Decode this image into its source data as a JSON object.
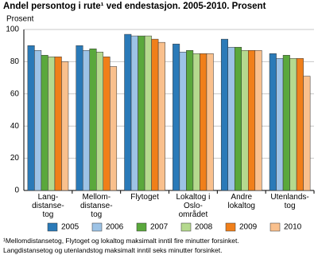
{
  "chart_data": {
    "type": "bar",
    "title": "Andel persontog i rute¹ ved endestasjon. 2005-2010. Prosent",
    "ylabel": "Prosent",
    "categories": [
      "Lang-\ndistanse-\ntog",
      "Mellom-\ndistanse-\ntog",
      "Flytoget",
      "Lokaltog i\nOslo-\nområdet",
      "Andre\nlokaltog",
      "Utenlands-\ntog"
    ],
    "series": [
      {
        "name": "2005",
        "color": "#2a7ab8",
        "values": [
          90,
          90,
          97,
          91,
          94,
          85
        ]
      },
      {
        "name": "2006",
        "color": "#9dc3e6",
        "values": [
          87,
          87,
          96,
          86,
          89,
          82
        ]
      },
      {
        "name": "2007",
        "color": "#5aa83c",
        "values": [
          84,
          88,
          96,
          87,
          89,
          84
        ]
      },
      {
        "name": "2008",
        "color": "#b5d98e",
        "values": [
          83,
          86,
          96,
          85,
          87,
          82
        ]
      },
      {
        "name": "2009",
        "color": "#f07f1a",
        "values": [
          83,
          83,
          94,
          85,
          87,
          82
        ]
      },
      {
        "name": "2010",
        "color": "#f9c08d",
        "values": [
          80,
          77,
          92,
          85,
          87,
          71
        ]
      }
    ],
    "ylim": [
      0,
      100
    ],
    "yticks": [
      0,
      20,
      40,
      60,
      80,
      100
    ],
    "grid": true,
    "footnote": [
      "¹Mellomdistansetog, Flytoget og lokaltog maksimalt inntil fire minutter forsinket.",
      "Langdistansetog og utenlandstog maksimalt inntil seks minutter forsinket."
    ]
  }
}
